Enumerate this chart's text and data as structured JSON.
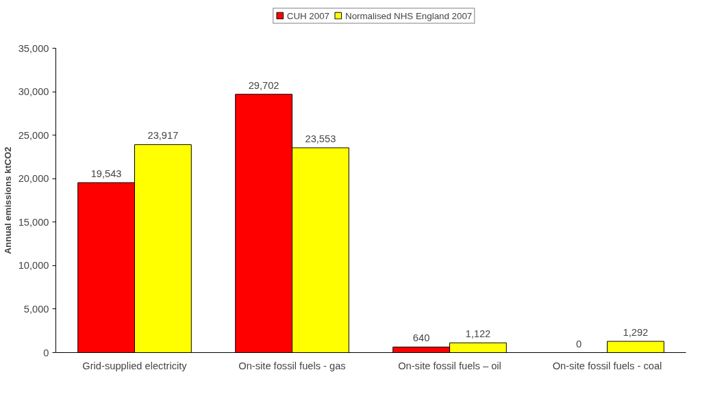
{
  "chart_data": {
    "type": "bar",
    "ylabel": "Annual emissions ktCO2",
    "categories": [
      "Grid-supplied electricity",
      "On-site fossil fuels - gas",
      "On-site fossil fuels – oil",
      "On-site fossil fuels - coal"
    ],
    "series": [
      {
        "name": "CUH 2007",
        "color": "#ff0000",
        "values": [
          19543,
          29702,
          640,
          0
        ],
        "value_labels": [
          "19,543",
          "29,702",
          "640",
          "0"
        ]
      },
      {
        "name": "Normalised NHS England 2007",
        "color": "#ffff00",
        "values": [
          23917,
          23553,
          1122,
          1292
        ],
        "value_labels": [
          "23,917",
          "23,553",
          "1,122",
          "1,292"
        ]
      }
    ],
    "ylim": [
      0,
      35000
    ],
    "yticks": [
      {
        "value": 0,
        "label": "0"
      },
      {
        "value": 5000,
        "label": "5,000"
      },
      {
        "value": 10000,
        "label": "10,000"
      },
      {
        "value": 15000,
        "label": "15,000"
      },
      {
        "value": 20000,
        "label": "20,000"
      },
      {
        "value": 25000,
        "label": "25,000"
      },
      {
        "value": 30000,
        "label": "30,000"
      },
      {
        "value": 35000,
        "label": "35,000"
      }
    ],
    "grid": false,
    "legend": "top"
  }
}
